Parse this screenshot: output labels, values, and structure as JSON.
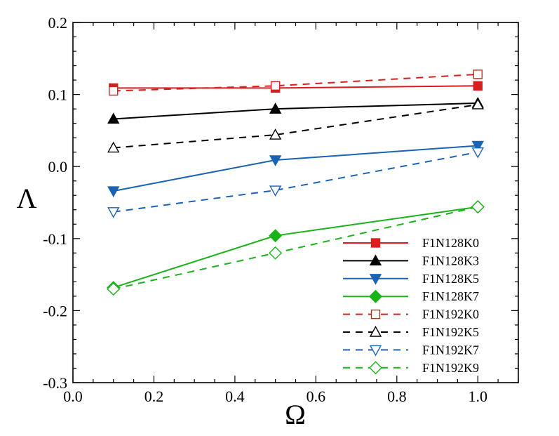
{
  "chart_data": {
    "type": "line",
    "title": "",
    "xlabel": "Ω",
    "ylabel": "Λ",
    "xlim": [
      0.0,
      1.1
    ],
    "ylim": [
      -0.3,
      0.2
    ],
    "x_ticks": [
      0.0,
      0.2,
      0.4,
      0.6,
      0.8,
      1.0
    ],
    "x_tick_labels": [
      "0.0",
      "0.2",
      "0.4",
      "0.6",
      "0.8",
      "1.0"
    ],
    "y_ticks": [
      -0.3,
      -0.2,
      -0.1,
      0.0,
      0.1,
      0.2
    ],
    "y_tick_labels": [
      "-0.3",
      "-0.2",
      "-0.1",
      "0.0",
      "0.1",
      "0.2"
    ],
    "grid": false,
    "legend_position": "bottom-right",
    "series": [
      {
        "name": "F1N128K0",
        "color": "#d81e1e",
        "dash": "solid",
        "marker": "square",
        "filled": true,
        "x": [
          0.1,
          0.5,
          1.0
        ],
        "y": [
          0.109,
          0.109,
          0.112
        ]
      },
      {
        "name": "F1N128K3",
        "color": "#000000",
        "dash": "solid",
        "marker": "triangle-up",
        "filled": true,
        "x": [
          0.1,
          0.5,
          1.0
        ],
        "y": [
          0.066,
          0.08,
          0.088
        ]
      },
      {
        "name": "F1N128K5",
        "color": "#1a62b3",
        "dash": "solid",
        "marker": "triangle-down",
        "filled": true,
        "x": [
          0.1,
          0.5,
          1.0
        ],
        "y": [
          -0.034,
          0.009,
          0.029
        ]
      },
      {
        "name": "F1N128K7",
        "color": "#19b319",
        "dash": "solid",
        "marker": "diamond",
        "filled": true,
        "x": [
          0.1,
          0.5,
          1.0
        ],
        "y": [
          -0.168,
          -0.096,
          -0.056
        ]
      },
      {
        "name": "F1N192K0",
        "color": "#d81e1e",
        "dash": "dashed",
        "marker": "square",
        "filled": false,
        "x": [
          0.1,
          0.5,
          1.0
        ],
        "y": [
          0.105,
          0.112,
          0.128
        ]
      },
      {
        "name": "F1N192K5",
        "color": "#000000",
        "dash": "dashed",
        "marker": "triangle-up",
        "filled": false,
        "x": [
          0.1,
          0.5,
          1.0
        ],
        "y": [
          0.026,
          0.044,
          0.086
        ]
      },
      {
        "name": "F1N192K7",
        "color": "#1a62b3",
        "dash": "dashed",
        "marker": "triangle-down",
        "filled": false,
        "x": [
          0.1,
          0.5,
          1.0
        ],
        "y": [
          -0.063,
          -0.033,
          0.02
        ]
      },
      {
        "name": "F1N192K9",
        "color": "#19b319",
        "dash": "dashed",
        "marker": "diamond",
        "filled": false,
        "x": [
          0.1,
          0.5,
          1.0
        ],
        "y": [
          -0.17,
          -0.12,
          -0.056
        ]
      }
    ]
  }
}
